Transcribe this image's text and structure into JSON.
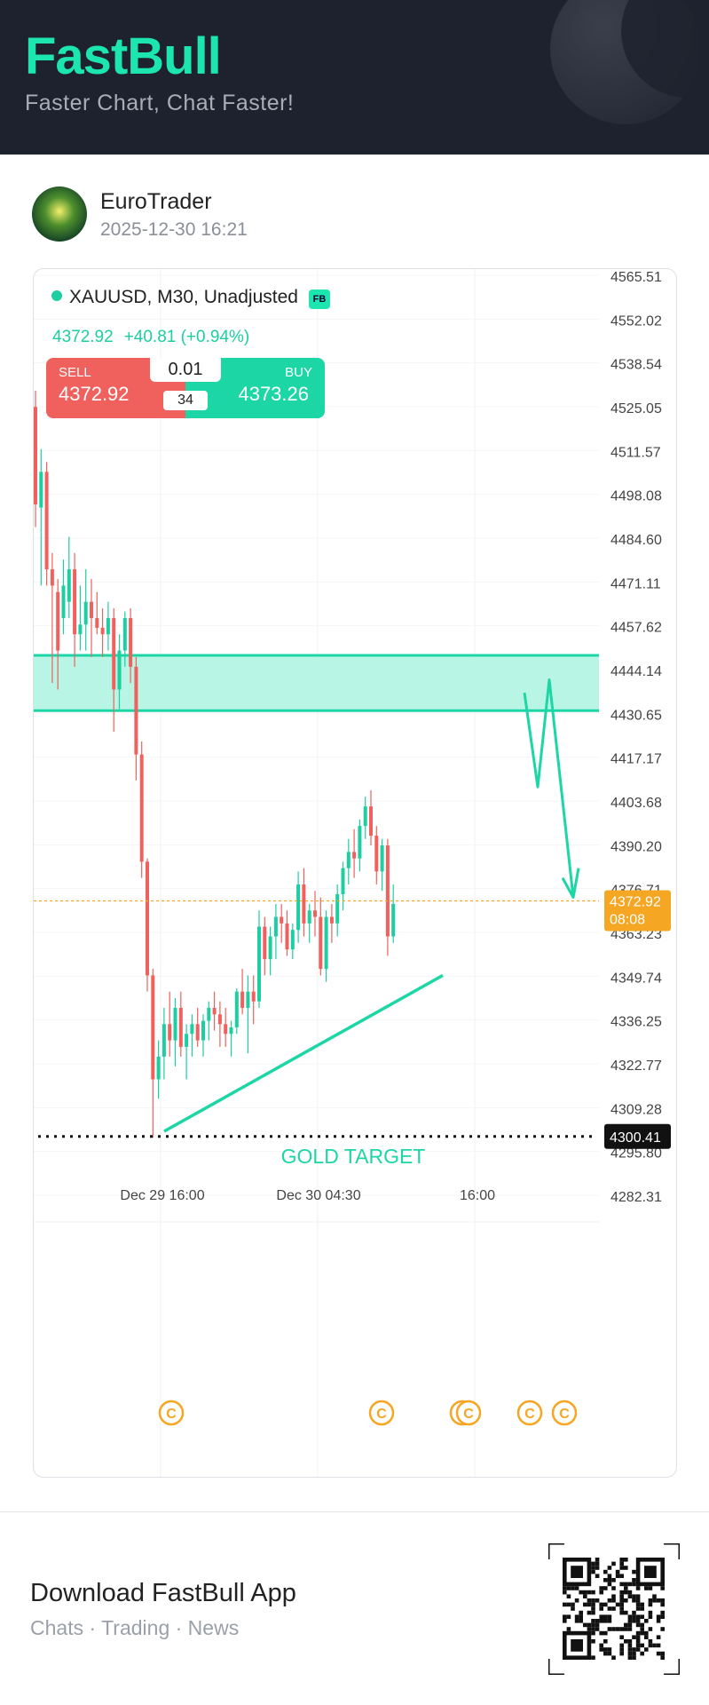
{
  "header": {
    "brand": "FastBull",
    "tagline": "Faster Chart, Chat Faster!"
  },
  "post": {
    "author": "EuroTrader",
    "timestamp": "2025-12-30 16:21",
    "avatar_icon": "globe-avatar-icon"
  },
  "instrument": {
    "title": "XAUUSD, M30, Unadjusted",
    "badge": "FB",
    "last_price": "4372.92",
    "change": "+40.81 (+0.94%)"
  },
  "trade_panel": {
    "sell_label": "SELL",
    "sell_price": "4372.92",
    "buy_label": "BUY",
    "buy_price": "4373.26",
    "lot": "0.01",
    "spread": "34"
  },
  "chart_data": {
    "type": "candlestick",
    "symbol": "XAUUSD",
    "timeframe": "M30",
    "y_ticks": [
      "4565.51",
      "4552.02",
      "4538.54",
      "4525.05",
      "4511.57",
      "4498.08",
      "4484.60",
      "4471.11",
      "4457.62",
      "4444.14",
      "4430.65",
      "4417.17",
      "4403.68",
      "4390.20",
      "4376.71",
      "4363.23",
      "4349.74",
      "4336.25",
      "4322.77",
      "4309.28",
      "4295.80",
      "4282.31"
    ],
    "ylim": [
      4278,
      4568
    ],
    "x_ticks": [
      "Dec 29 16:00",
      "Dec 30 04:30",
      "16:00"
    ],
    "current_price_label": "4372.92",
    "current_countdown": "08:08",
    "target_price_label": "4300.41",
    "target_price": 4300.41,
    "target_text": "GOLD TARGET",
    "resistance_zone": [
      4431.5,
      4448.5
    ],
    "event_markers": [
      "C",
      "C",
      "C",
      "C",
      "C",
      "C"
    ],
    "colors": {
      "up": "#1dcfa0",
      "down": "#f0605c",
      "zone": "#b8f5e4",
      "accent": "#1dd6a6",
      "price_tag": "#f5a623"
    },
    "candles": [
      {
        "o": 4525,
        "h": 4530,
        "l": 4488,
        "c": 4495
      },
      {
        "o": 4494,
        "h": 4512,
        "l": 4470,
        "c": 4505
      },
      {
        "o": 4505,
        "h": 4508,
        "l": 4470,
        "c": 4475
      },
      {
        "o": 4475,
        "h": 4480,
        "l": 4440,
        "c": 4470
      },
      {
        "o": 4468,
        "h": 4472,
        "l": 4438,
        "c": 4450
      },
      {
        "o": 4460,
        "h": 4478,
        "l": 4455,
        "c": 4470
      },
      {
        "o": 4465,
        "h": 4485,
        "l": 4460,
        "c": 4475
      },
      {
        "o": 4475,
        "h": 4480,
        "l": 4445,
        "c": 4455
      },
      {
        "o": 4455,
        "h": 4470,
        "l": 4450,
        "c": 4458
      },
      {
        "o": 4458,
        "h": 4475,
        "l": 4450,
        "c": 4465
      },
      {
        "o": 4465,
        "h": 4472,
        "l": 4448,
        "c": 4460
      },
      {
        "o": 4460,
        "h": 4468,
        "l": 4455,
        "c": 4457
      },
      {
        "o": 4457,
        "h": 4463,
        "l": 4448,
        "c": 4455
      },
      {
        "o": 4455,
        "h": 4465,
        "l": 4450,
        "c": 4460
      },
      {
        "o": 4460,
        "h": 4463,
        "l": 4425,
        "c": 4438
      },
      {
        "o": 4438,
        "h": 4455,
        "l": 4432,
        "c": 4450
      },
      {
        "o": 4450,
        "h": 4462,
        "l": 4445,
        "c": 4460
      },
      {
        "o": 4460,
        "h": 4463,
        "l": 4440,
        "c": 4445
      },
      {
        "o": 4445,
        "h": 4448,
        "l": 4410,
        "c": 4418
      },
      {
        "o": 4418,
        "h": 4422,
        "l": 4380,
        "c": 4385
      },
      {
        "o": 4385,
        "h": 4386,
        "l": 4345,
        "c": 4350
      },
      {
        "o": 4350,
        "h": 4352,
        "l": 4300,
        "c": 4318
      },
      {
        "o": 4318,
        "h": 4330,
        "l": 4312,
        "c": 4325
      },
      {
        "o": 4325,
        "h": 4340,
        "l": 4318,
        "c": 4335
      },
      {
        "o": 4335,
        "h": 4345,
        "l": 4325,
        "c": 4330
      },
      {
        "o": 4330,
        "h": 4343,
        "l": 4322,
        "c": 4340
      },
      {
        "o": 4340,
        "h": 4345,
        "l": 4325,
        "c": 4328
      },
      {
        "o": 4328,
        "h": 4335,
        "l": 4318,
        "c": 4332
      },
      {
        "o": 4332,
        "h": 4338,
        "l": 4325,
        "c": 4335
      },
      {
        "o": 4335,
        "h": 4340,
        "l": 4328,
        "c": 4330
      },
      {
        "o": 4330,
        "h": 4338,
        "l": 4325,
        "c": 4336
      },
      {
        "o": 4336,
        "h": 4342,
        "l": 4330,
        "c": 4340
      },
      {
        "o": 4340,
        "h": 4345,
        "l": 4333,
        "c": 4338
      },
      {
        "o": 4338,
        "h": 4342,
        "l": 4328,
        "c": 4335
      },
      {
        "o": 4335,
        "h": 4340,
        "l": 4328,
        "c": 4332
      },
      {
        "o": 4332,
        "h": 4336,
        "l": 4325,
        "c": 4334
      },
      {
        "o": 4334,
        "h": 4346,
        "l": 4332,
        "c": 4345
      },
      {
        "o": 4345,
        "h": 4352,
        "l": 4338,
        "c": 4340
      },
      {
        "o": 4340,
        "h": 4350,
        "l": 4326,
        "c": 4345
      },
      {
        "o": 4345,
        "h": 4350,
        "l": 4335,
        "c": 4342
      },
      {
        "o": 4342,
        "h": 4370,
        "l": 4340,
        "c": 4365
      },
      {
        "o": 4365,
        "h": 4368,
        "l": 4350,
        "c": 4355
      },
      {
        "o": 4355,
        "h": 4365,
        "l": 4350,
        "c": 4362
      },
      {
        "o": 4362,
        "h": 4372,
        "l": 4355,
        "c": 4368
      },
      {
        "o": 4368,
        "h": 4372,
        "l": 4360,
        "c": 4366
      },
      {
        "o": 4366,
        "h": 4370,
        "l": 4356,
        "c": 4358
      },
      {
        "o": 4358,
        "h": 4366,
        "l": 4355,
        "c": 4364
      },
      {
        "o": 4364,
        "h": 4382,
        "l": 4360,
        "c": 4378
      },
      {
        "o": 4378,
        "h": 4383,
        "l": 4362,
        "c": 4366
      },
      {
        "o": 4366,
        "h": 4372,
        "l": 4360,
        "c": 4370
      },
      {
        "o": 4370,
        "h": 4376,
        "l": 4362,
        "c": 4368
      },
      {
        "o": 4368,
        "h": 4374,
        "l": 4350,
        "c": 4352
      },
      {
        "o": 4352,
        "h": 4370,
        "l": 4348,
        "c": 4368
      },
      {
        "o": 4368,
        "h": 4372,
        "l": 4360,
        "c": 4366
      },
      {
        "o": 4366,
        "h": 4378,
        "l": 4362,
        "c": 4375
      },
      {
        "o": 4375,
        "h": 4385,
        "l": 4370,
        "c": 4383
      },
      {
        "o": 4383,
        "h": 4392,
        "l": 4378,
        "c": 4388
      },
      {
        "o": 4388,
        "h": 4395,
        "l": 4380,
        "c": 4386
      },
      {
        "o": 4386,
        "h": 4398,
        "l": 4382,
        "c": 4396
      },
      {
        "o": 4396,
        "h": 4405,
        "l": 4392,
        "c": 4402
      },
      {
        "o": 4402,
        "h": 4407,
        "l": 4390,
        "c": 4393
      },
      {
        "o": 4393,
        "h": 4396,
        "l": 4378,
        "c": 4382
      },
      {
        "o": 4382,
        "h": 4392,
        "l": 4376,
        "c": 4390
      },
      {
        "o": 4390,
        "h": 4392,
        "l": 4356,
        "c": 4362
      },
      {
        "o": 4362,
        "h": 4378,
        "l": 4360,
        "c": 4372
      }
    ]
  },
  "footer": {
    "title": "Download FastBull App",
    "subtitle": "Chats · Trading · News",
    "qr_icon": "qr-code-icon"
  }
}
